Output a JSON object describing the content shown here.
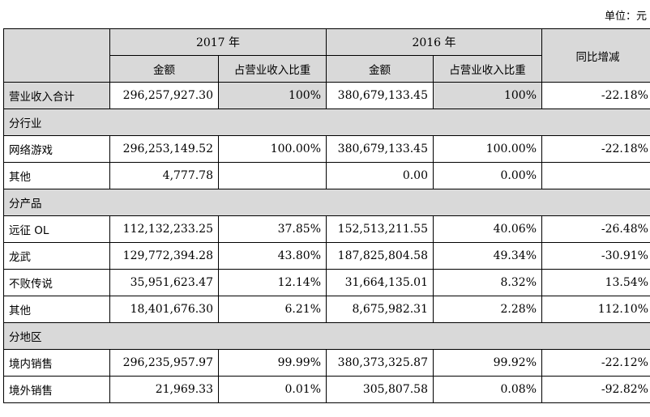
{
  "unit_label": "单位：元",
  "header": {
    "year_2017": "2017 年",
    "year_2016": "2016 年",
    "amount": "金额",
    "ratio": "占营业收入比重",
    "yoy": "同比增减"
  },
  "total_row": {
    "label": "营业收入合计",
    "amount_2017": "296,257,927.30",
    "ratio_2017": "100%",
    "amount_2016": "380,679,133.45",
    "ratio_2016": "100%",
    "yoy": "-22.18%"
  },
  "sections": [
    {
      "title": "分行业",
      "rows": [
        {
          "label": "网络游戏",
          "amount_2017": "296,253,149.52",
          "ratio_2017": "100.00%",
          "amount_2016": "380,679,133.45",
          "ratio_2016": "100.00%",
          "yoy": "-22.18%"
        },
        {
          "label": "其他",
          "amount_2017": "4,777.78",
          "ratio_2017": "",
          "amount_2016": "0.00",
          "ratio_2016": "0.00%",
          "yoy": ""
        }
      ]
    },
    {
      "title": "分产品",
      "rows": [
        {
          "label": "远征 OL",
          "amount_2017": "112,132,233.25",
          "ratio_2017": "37.85%",
          "amount_2016": "152,513,211.55",
          "ratio_2016": "40.06%",
          "yoy": "-26.48%"
        },
        {
          "label": "龙武",
          "amount_2017": "129,772,394.28",
          "ratio_2017": "43.80%",
          "amount_2016": "187,825,804.58",
          "ratio_2016": "49.34%",
          "yoy": "-30.91%"
        },
        {
          "label": "不败传说",
          "amount_2017": "35,951,623.47",
          "ratio_2017": "12.14%",
          "amount_2016": "31,664,135.01",
          "ratio_2016": "8.32%",
          "yoy": "13.54%"
        },
        {
          "label": "其他",
          "amount_2017": "18,401,676.30",
          "ratio_2017": "6.21%",
          "amount_2016": "8,675,982.31",
          "ratio_2016": "2.28%",
          "yoy": "112.10%"
        }
      ]
    },
    {
      "title": "分地区",
      "rows": [
        {
          "label": "境内销售",
          "amount_2017": "296,235,957.97",
          "ratio_2017": "99.99%",
          "amount_2016": "380,373,325.87",
          "ratio_2016": "99.92%",
          "yoy": "-22.12%"
        },
        {
          "label": "境外销售",
          "amount_2017": "21,969.33",
          "ratio_2017": "0.01%",
          "amount_2016": "305,807.58",
          "ratio_2016": "0.08%",
          "yoy": "-92.82%"
        }
      ]
    }
  ]
}
